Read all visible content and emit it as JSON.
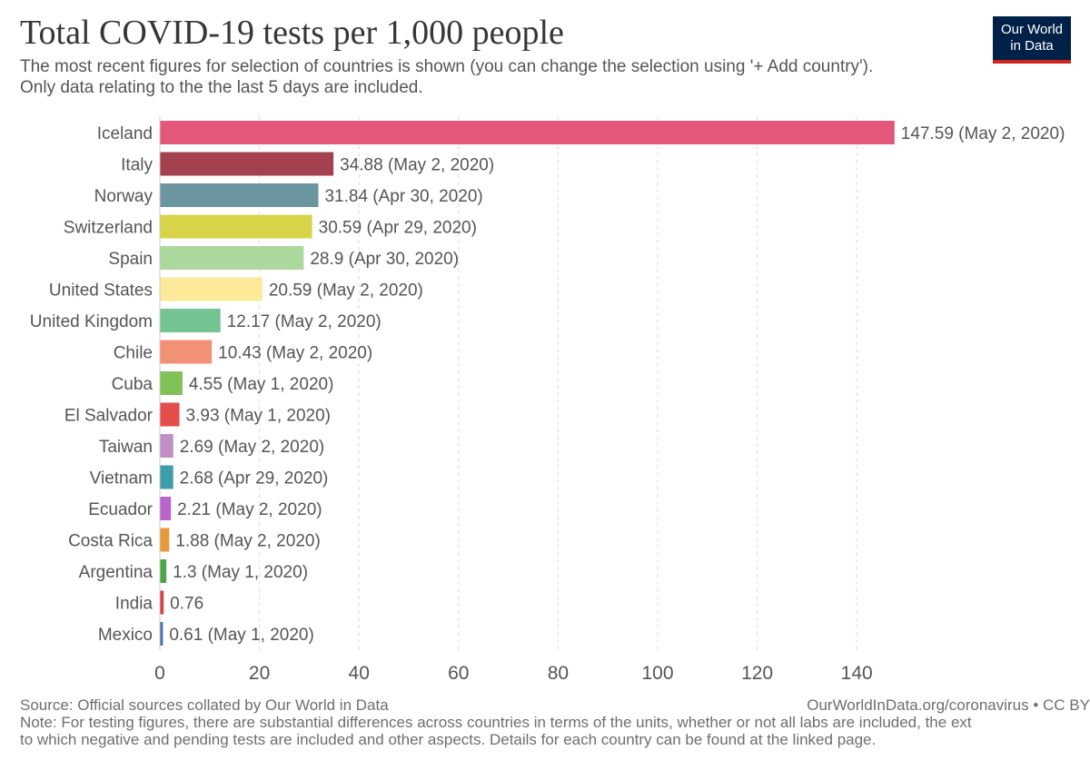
{
  "logo": {
    "line1": "Our World",
    "line2": "in Data"
  },
  "chart_data": {
    "type": "bar",
    "orientation": "horizontal",
    "title": "Total COVID-19 tests per 1,000 people",
    "subtitle_lines": [
      "The most recent figures for selection of countries is shown (you can change the selection using '+ Add country').",
      "Only data relating to the the last 5 days are included."
    ],
    "xlim": [
      0,
      150
    ],
    "xticks": [
      0,
      20,
      40,
      60,
      80,
      100,
      120,
      140
    ],
    "grid": true,
    "categories": [
      "Iceland",
      "Italy",
      "Norway",
      "Switzerland",
      "Spain",
      "United States",
      "United Kingdom",
      "Chile",
      "Cuba",
      "El Salvador",
      "Taiwan",
      "Vietnam",
      "Ecuador",
      "Costa Rica",
      "Argentina",
      "India",
      "Mexico"
    ],
    "values": [
      147.59,
      34.88,
      31.84,
      30.59,
      28.9,
      20.59,
      12.17,
      10.43,
      4.55,
      3.93,
      2.69,
      2.68,
      2.21,
      1.88,
      1.3,
      0.76,
      0.61
    ],
    "value_labels": [
      "147.59 (May 2, 2020)",
      "34.88 (May 2, 2020)",
      "31.84 (Apr 30, 2020)",
      "30.59 (Apr 29, 2020)",
      "28.9 (Apr 30, 2020)",
      "20.59 (May 2, 2020)",
      "12.17 (May 2, 2020)",
      "10.43 (May 2, 2020)",
      "4.55 (May 1, 2020)",
      "3.93 (May 1, 2020)",
      "2.69 (May 2, 2020)",
      "2.68 (Apr 29, 2020)",
      "2.21 (May 2, 2020)",
      "1.88 (May 2, 2020)",
      "1.3 (May 1, 2020)",
      "0.76",
      "0.61 (May 1, 2020)"
    ],
    "colors": [
      "#e2577a",
      "#a3414f",
      "#6b96a0",
      "#d8d44a",
      "#acd89e",
      "#fde99a",
      "#73c393",
      "#f29175",
      "#80c257",
      "#e64d4d",
      "#bf8fc6",
      "#3d9ea7",
      "#b864ca",
      "#e89a3a",
      "#4ea64b",
      "#d44242",
      "#4a6fb5"
    ]
  },
  "footer": {
    "source": "Source: Official sources collated by Our World in Data",
    "link": "OurWorldInData.org/coronavirus • CC BY",
    "note_line1": "Note: For testing figures, there are substantial differences across countries in terms of the units, whether or not all labs are included, the ext",
    "note_line2": "to which negative and pending tests are included and other aspects. Details for each country can be found at the linked page."
  }
}
